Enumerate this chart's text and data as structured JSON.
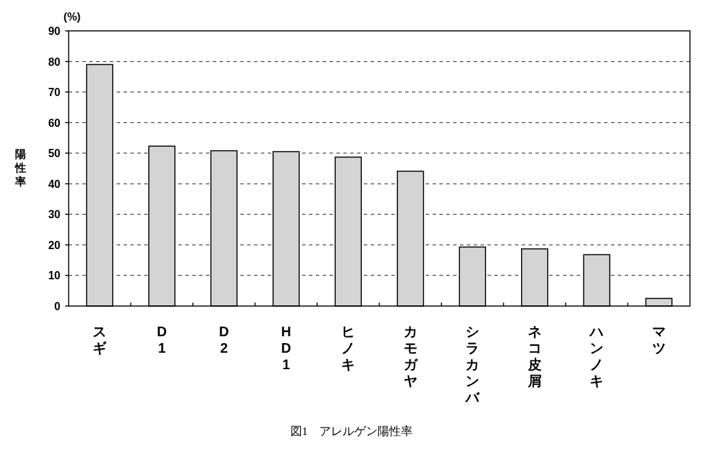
{
  "chart_data": {
    "type": "bar",
    "title": "図1　アレルゲン陽性率",
    "ylabel": "陽性率",
    "annotations": [
      "(%)"
    ],
    "categories": [
      "スギ",
      "D1",
      "D2",
      "HD1",
      "ヒノキ",
      "カモガヤ",
      "シラカンバ",
      "ネコ皮屑",
      "ハンノキ",
      "マツ"
    ],
    "values": [
      79.0,
      52.3,
      50.8,
      50.5,
      48.7,
      44.1,
      19.3,
      18.7,
      16.8,
      2.5
    ],
    "color": "#d4d4d4",
    "ylim": [
      0,
      90
    ],
    "yticks": [
      0,
      10,
      20,
      30,
      40,
      50,
      60,
      70,
      80,
      90
    ],
    "grid": "y"
  }
}
